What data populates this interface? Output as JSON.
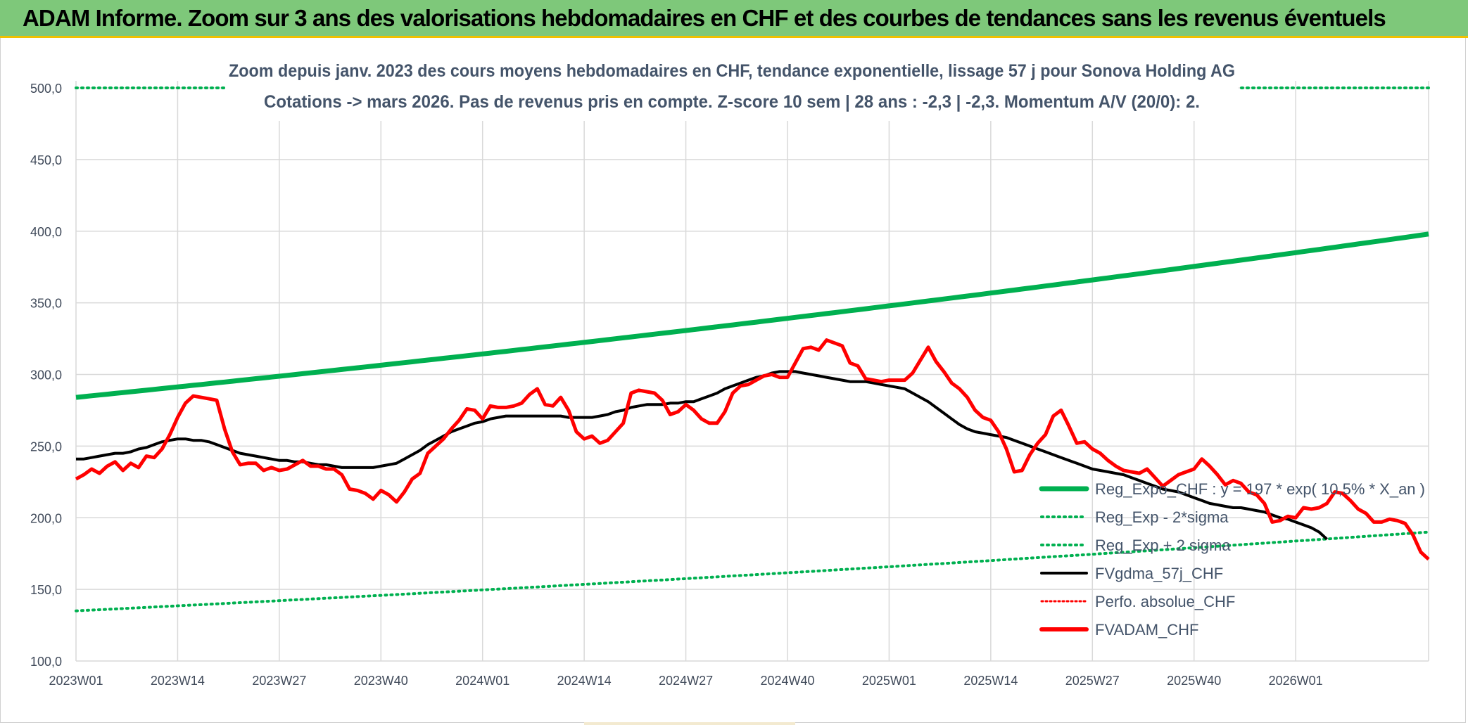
{
  "banner": {
    "title": "ADAM Informe. Zoom sur 3 ans des valorisations hebdomadaires en CHF et des courbes de tendances sans les revenus éventuels"
  },
  "chart_data": {
    "type": "line",
    "title": "",
    "subtitle_lines": [
      "Zoom depuis janv. 2023 des cours moyens hebdomadaires en CHF, tendance exponentielle, lissage 57 j pour Sonova Holding AG",
      "Cotations -> mars 2026. Pas de revenus pris en compte. Z-score 10 sem | 28 ans : -2,3 | -2,3. Momentum A/V (20/0): 2."
    ],
    "xlabel": "",
    "ylabel": "",
    "ylim": [
      100,
      500
    ],
    "y_ticks": [
      "100,0",
      "150,0",
      "200,0",
      "250,0",
      "300,0",
      "350,0",
      "400,0",
      "450,0",
      "500,0"
    ],
    "x_tick_labels": [
      "2023W01",
      "2023W14",
      "2023W27",
      "2023W40",
      "2024W01",
      "2024W14",
      "2024W27",
      "2024W40",
      "2025W01",
      "2025W14",
      "2025W27",
      "2025W40",
      "2026W01"
    ],
    "x_tick_index": [
      0,
      13,
      26,
      39,
      52,
      65,
      78,
      91,
      104,
      117,
      130,
      143,
      156
    ],
    "grid": true,
    "legend_placement": "bottom-right",
    "colors": {
      "reg_expo": "#00b050",
      "band": "#00b050",
      "fvgdma": "#000000",
      "perfo": "#ff0000",
      "fvadam": "#ff0000",
      "grid": "#d9d9d9",
      "axis_text": "#404a5a"
    },
    "series": [
      {
        "key": "reg_expo",
        "name": "Reg_Expo_CHF : y = 197 * exp( 10,5% *  X_an )",
        "style": "solid-thick",
        "start": 284,
        "end": 398,
        "count": 174
      },
      {
        "key": "reg_minus",
        "name": "Reg_Exp - 2*sigma",
        "style": "dotted",
        "start": 135,
        "end": 190,
        "count": 174
      },
      {
        "key": "reg_plus",
        "name": "Reg_Exp + 2 sigma",
        "style": "dotted",
        "start": 500,
        "end": 500,
        "count": 174
      },
      {
        "key": "fvgdma",
        "name": "FVgdma_57j_CHF",
        "style": "solid",
        "values": [
          241,
          241,
          242,
          243,
          244,
          245,
          245,
          246,
          248,
          249,
          251,
          253,
          254,
          255,
          255,
          254,
          254,
          253,
          251,
          249,
          247,
          245,
          244,
          243,
          242,
          241,
          240,
          240,
          239,
          239,
          238,
          237,
          237,
          236,
          235,
          235,
          235,
          235,
          235,
          236,
          237,
          238,
          241,
          244,
          247,
          251,
          254,
          257,
          260,
          262,
          264,
          266,
          267,
          269,
          270,
          271,
          271,
          271,
          271,
          271,
          271,
          271,
          271,
          270,
          270,
          270,
          270,
          271,
          272,
          274,
          275,
          277,
          278,
          279,
          279,
          279,
          280,
          280,
          281,
          281,
          283,
          285,
          287,
          290,
          292,
          294,
          296,
          298,
          299,
          301,
          302,
          302,
          302,
          301,
          300,
          299,
          298,
          297,
          296,
          295,
          295,
          295,
          294,
          293,
          292,
          291,
          290,
          287,
          284,
          281,
          277,
          273,
          269,
          265,
          262,
          260,
          259,
          258,
          257,
          256,
          254,
          252,
          250,
          248,
          246,
          244,
          242,
          240,
          238,
          236,
          234,
          233,
          232,
          231,
          230,
          228,
          226,
          224,
          222,
          220,
          219,
          218,
          216,
          214,
          212,
          210,
          209,
          208,
          207,
          207,
          206,
          205,
          204,
          202,
          200,
          199,
          197,
          195,
          193,
          190,
          185
        ]
      },
      {
        "key": "perfo",
        "name": "Perfo. absolue_CHF",
        "style": "dotted-red",
        "values": []
      },
      {
        "key": "fvadam",
        "name": "FVADAM_CHF",
        "style": "solid-thick",
        "values": [
          227,
          230,
          234,
          231,
          236,
          239,
          233,
          238,
          235,
          243,
          242,
          248,
          258,
          270,
          280,
          285,
          284,
          283,
          282,
          262,
          246,
          237,
          238,
          238,
          233,
          235,
          233,
          234,
          237,
          240,
          236,
          236,
          234,
          234,
          230,
          220,
          219,
          217,
          213,
          219,
          216,
          211,
          218,
          227,
          231,
          245,
          250,
          255,
          262,
          268,
          276,
          275,
          269,
          278,
          277,
          277,
          278,
          280,
          286,
          290,
          279,
          278,
          284,
          275,
          260,
          255,
          257,
          252,
          254,
          260,
          266,
          287,
          289,
          288,
          287,
          282,
          272,
          274,
          279,
          275,
          269,
          266,
          266,
          274,
          287,
          292,
          293,
          296,
          299,
          300,
          298,
          298,
          308,
          318,
          319,
          317,
          324,
          322,
          320,
          308,
          306,
          297,
          296,
          295,
          296,
          296,
          296,
          301,
          310,
          319,
          309,
          302,
          294,
          290,
          284,
          275,
          270,
          268,
          260,
          248,
          232,
          233,
          244,
          252,
          258,
          271,
          275,
          264,
          252,
          253,
          248,
          245,
          240,
          236,
          233,
          232,
          231,
          234,
          228,
          222,
          226,
          230,
          232,
          234,
          241,
          236,
          230,
          223,
          226,
          224,
          218,
          216,
          210,
          197,
          198,
          201,
          200,
          207,
          206,
          207,
          210,
          218,
          217,
          212,
          206,
          203,
          197,
          197,
          199,
          198,
          196,
          188,
          176,
          171
        ]
      }
    ]
  }
}
